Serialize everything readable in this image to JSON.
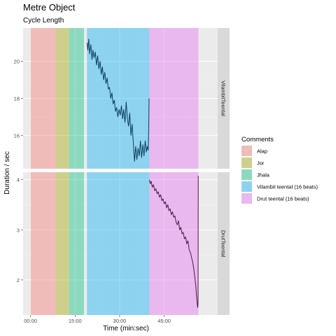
{
  "chart_data": {
    "type": "line",
    "title": "Metre Object",
    "subtitle": "Cycle Length",
    "xlabel": "Time (min:sec)",
    "ylabel": "Duration / sec",
    "x_unit": "minutes",
    "xlim": [
      -2.5,
      63
    ],
    "x_ticks": [
      {
        "value": 0,
        "label": "00:00"
      },
      {
        "value": 15,
        "label": "15:00"
      },
      {
        "value": 30,
        "label": "30:00"
      },
      {
        "value": 45,
        "label": "45:00"
      }
    ],
    "grid": true,
    "legend_position": "right",
    "legend": {
      "title": "Comments",
      "entries": [
        {
          "label": "Alap",
          "color": "#f8766d"
        },
        {
          "label": "Jor",
          "color": "#a3a500"
        },
        {
          "label": "Jhala",
          "color": "#00bf7d"
        },
        {
          "label": "Vilambit teental (16 beats)",
          "color": "#00b0f6"
        },
        {
          "label": "Drut teental (16 beats)",
          "color": "#e76bf3"
        }
      ]
    },
    "sections": [
      {
        "label": "Alap",
        "start": 0,
        "end": 8.5,
        "color": "#f8766d"
      },
      {
        "label": "Jor",
        "start": 8.5,
        "end": 13,
        "color": "#a3a500"
      },
      {
        "label": "Jhala",
        "start": 13,
        "end": 18,
        "color": "#00bf7d"
      },
      {
        "label": "Vilambit teental (16 beats)",
        "start": 19,
        "end": 40,
        "color": "#00b0f6"
      },
      {
        "label": "Drut teental (16 beats)",
        "start": 40,
        "end": 56.5,
        "color": "#e76bf3"
      }
    ],
    "panels": [
      {
        "strip": "VilambitTeental",
        "ylim": [
          14.2,
          21.8
        ],
        "y_ticks": [
          16,
          18,
          20
        ],
        "line_color": "#0b3d5a",
        "series": {
          "x": [
            19.0,
            19.3,
            19.6,
            19.9,
            20.3,
            20.7,
            21.0,
            21.4,
            21.8,
            22.2,
            22.6,
            23.0,
            23.4,
            23.8,
            24.2,
            24.6,
            25.0,
            25.4,
            25.8,
            26.2,
            26.6,
            27.0,
            27.4,
            27.8,
            28.2,
            28.6,
            29.0,
            29.4,
            29.8,
            30.2,
            30.6,
            31.0,
            31.4,
            31.8,
            32.2,
            32.6,
            33.0,
            33.4,
            33.8,
            34.2,
            34.6,
            35.0,
            35.4,
            35.8,
            36.2,
            36.6,
            37.0,
            37.4,
            37.8,
            38.2,
            38.6,
            39.0,
            39.3,
            39.6,
            39.8,
            39.9
          ],
          "y": [
            21.0,
            20.6,
            21.2,
            20.4,
            20.9,
            20.1,
            20.6,
            20.2,
            20.5,
            19.8,
            20.3,
            19.6,
            20.0,
            19.3,
            19.7,
            19.0,
            19.4,
            18.8,
            19.1,
            18.5,
            18.6,
            18.0,
            18.3,
            17.7,
            17.9,
            17.3,
            17.5,
            17.0,
            17.4,
            17.1,
            17.6,
            16.9,
            17.4,
            16.7,
            17.8,
            16.9,
            16.5,
            17.2,
            16.0,
            16.6,
            15.6,
            14.6,
            15.4,
            14.7,
            15.3,
            14.9,
            15.7,
            14.8,
            15.5,
            14.9,
            15.7,
            15.1,
            15.4,
            15.2,
            16.5,
            18.0
          ]
        }
      },
      {
        "strip": "DrutTeental",
        "ylim": [
          1.3,
          4.15
        ],
        "y_ticks": [
          2,
          3,
          4
        ],
        "line_color": "#4a1942",
        "series": {
          "x": [
            40.0,
            40.3,
            40.6,
            41.0,
            41.4,
            41.8,
            42.2,
            42.6,
            43.0,
            43.4,
            43.8,
            44.2,
            44.6,
            45.0,
            45.4,
            45.8,
            46.2,
            46.6,
            47.0,
            47.4,
            47.8,
            48.2,
            48.6,
            49.0,
            49.4,
            49.8,
            50.2,
            50.6,
            51.0,
            51.4,
            51.8,
            52.2,
            52.6,
            53.0,
            53.4,
            53.8,
            54.2,
            54.6,
            55.0,
            55.3,
            55.6,
            55.8,
            56.0,
            56.2,
            56.3,
            56.4,
            56.45
          ],
          "y": [
            4.0,
            3.92,
            3.97,
            3.85,
            3.9,
            3.78,
            3.82,
            3.72,
            3.76,
            3.65,
            3.7,
            3.58,
            3.62,
            3.52,
            3.56,
            3.44,
            3.5,
            3.38,
            3.42,
            3.3,
            3.36,
            3.25,
            3.28,
            3.15,
            3.1,
            3.18,
            3.0,
            3.05,
            2.92,
            2.95,
            2.82,
            2.86,
            2.72,
            2.78,
            2.6,
            2.55,
            2.45,
            2.35,
            2.2,
            2.05,
            1.9,
            1.75,
            1.6,
            1.48,
            1.45,
            1.55,
            4.08
          ]
        }
      }
    ]
  }
}
